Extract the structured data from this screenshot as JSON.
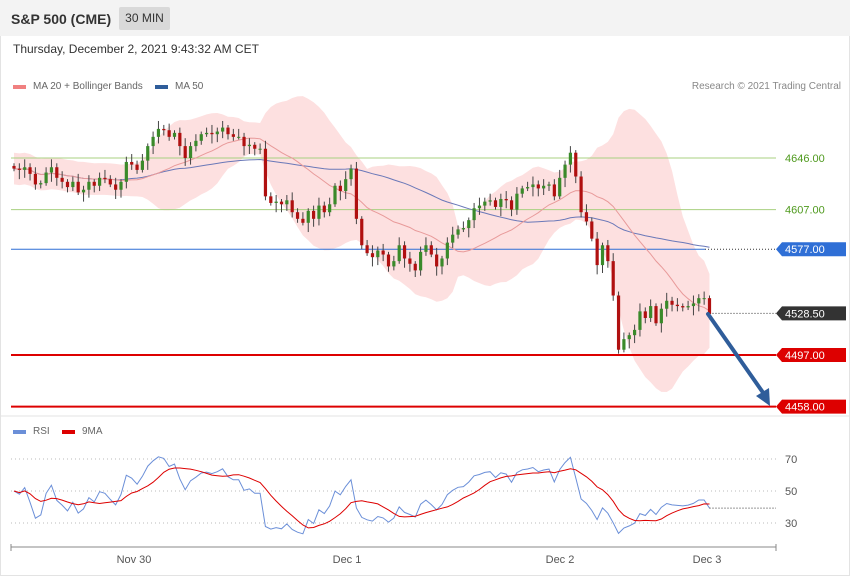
{
  "header": {
    "title": "S&P 500 (CME)",
    "interval": "30 MIN"
  },
  "timestamp": "Thursday, December 2, 2021 9:43:32 AM CET",
  "legend": {
    "ma20": "MA 20 + Bollinger Bands",
    "ma50": "MA 50",
    "rsi": "RSI",
    "rsi_ma": "9MA"
  },
  "credit": "Research © 2021 Trading Central",
  "colors": {
    "candle_up": "#3a8a2a",
    "candle_down": "#b01010",
    "bollinger_fill": "#fde0e0",
    "ma20": "#e89a9a",
    "ma50": "#6a78b8",
    "resistance": "#a8d080",
    "pivot": "#2f6fd6",
    "support": "#dd0000",
    "current": "#333333",
    "arrow": "#2f5d9a",
    "rsi": "#6b8fd8",
    "rsi_ma": "#dd0000"
  },
  "chart_data": [
    {
      "type": "candlestick",
      "title": "S&P 500 (CME)",
      "x_ticks": [
        "Nov 30",
        "Dec 1",
        "Dec 2",
        "Dec 3"
      ],
      "ylim": [
        4440,
        4710
      ],
      "levels": [
        {
          "label": "4646.00",
          "value": 4646.0,
          "kind": "resistance"
        },
        {
          "label": "4607.00",
          "value": 4607.0,
          "kind": "resistance"
        },
        {
          "label": "4577.00",
          "value": 4577.0,
          "kind": "pivot"
        },
        {
          "label": "4528.50",
          "value": 4528.5,
          "kind": "current"
        },
        {
          "label": "4497.00",
          "value": 4497.0,
          "kind": "support"
        },
        {
          "label": "4458.00",
          "value": 4458.0,
          "kind": "support"
        }
      ],
      "series": [
        {
          "name": "MA 20 + Bollinger Bands"
        },
        {
          "name": "MA 50"
        }
      ],
      "close": [
        4638,
        4637,
        4639,
        4634,
        4626,
        4627,
        4635,
        4639,
        4631,
        4628,
        4624,
        4628,
        4620,
        4622,
        4628,
        4625,
        4631,
        4630,
        4626,
        4622,
        4628,
        4643,
        4641,
        4637,
        4644,
        4655,
        4662,
        4668,
        4667,
        4662,
        4665,
        4655,
        4646,
        4655,
        4659,
        4664,
        4665,
        4664,
        4666,
        4669,
        4664,
        4662,
        4662,
        4655,
        4656,
        4653,
        4653,
        4617,
        4612,
        4613,
        4611,
        4614,
        4605,
        4600,
        4597,
        4606,
        4600,
        4610,
        4605,
        4611,
        4625,
        4621,
        4630,
        4638,
        4600,
        4580,
        4574,
        4571,
        4576,
        4573,
        4564,
        4568,
        4580,
        4570,
        4566,
        4561,
        4575,
        4580,
        4573,
        4564,
        4570,
        4582,
        4588,
        4592,
        4593,
        4599,
        4608,
        4610,
        4613,
        4614,
        4609,
        4615,
        4614,
        4607,
        4619,
        4623,
        4624,
        4626,
        4623,
        4625,
        4626,
        4617,
        4631,
        4641,
        4650,
        4632,
        4605,
        4598,
        4585,
        4565,
        4580,
        4568,
        4542,
        4501,
        4509,
        4512,
        4516,
        4530,
        4525,
        4534,
        4521,
        4532,
        4538,
        4535,
        4534,
        4533,
        4534,
        4536,
        4540,
        4540,
        4528
      ]
    },
    {
      "type": "line",
      "y_ticks": [
        30,
        50,
        70
      ],
      "series": [
        {
          "name": "RSI"
        },
        {
          "name": "9MA"
        }
      ]
    }
  ]
}
